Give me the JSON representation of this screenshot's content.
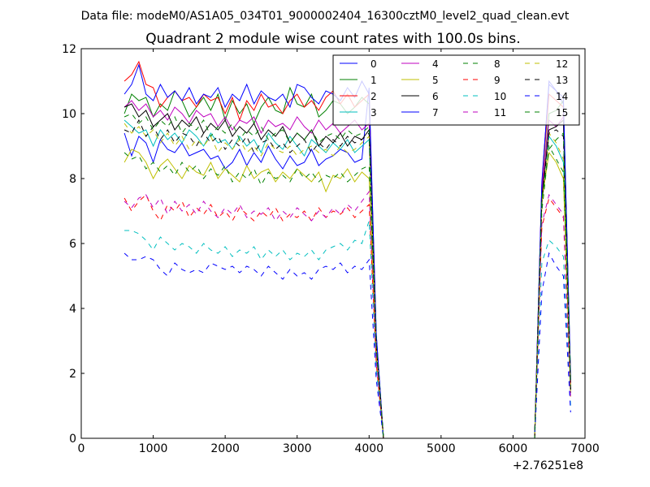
{
  "chart_data": {
    "type": "line",
    "suptitle": "Data file: modeM0/AS1A05_034T01_9000002404_16300cztM0_level2_quad_clean.evt",
    "title": "Quadrant 2 module wise count rates with 100.0s bins.",
    "xlabel": "",
    "ylabel": "",
    "x_offset_label": "+2.76251e8",
    "xlim": [
      0,
      7000
    ],
    "ylim": [
      0,
      12
    ],
    "xticks": [
      0,
      1000,
      2000,
      3000,
      4000,
      5000,
      6000,
      7000
    ],
    "yticks": [
      0,
      2,
      4,
      6,
      8,
      10,
      12
    ],
    "xtick_labels": [
      "0",
      "1000",
      "2000",
      "3000",
      "4000",
      "5000",
      "6000",
      "7000"
    ],
    "ytick_labels": [
      "0",
      "2",
      "4",
      "6",
      "8",
      "10",
      "12"
    ],
    "legend_position": "top-right",
    "legend_columns": 4,
    "x": [
      600,
      700,
      800,
      900,
      1000,
      1100,
      1200,
      1300,
      1400,
      1500,
      1600,
      1700,
      1800,
      1900,
      2000,
      2100,
      2200,
      2300,
      2400,
      2500,
      2600,
      2700,
      2800,
      2900,
      3000,
      3100,
      3200,
      3300,
      3400,
      3500,
      3600,
      3700,
      3800,
      3900,
      4000,
      4100,
      4200,
      4300,
      4400,
      4500,
      4600,
      4700,
      4800,
      4900,
      5000,
      5100,
      5200,
      5300,
      5400,
      5500,
      5600,
      5700,
      5800,
      5900,
      6000,
      6100,
      6200,
      6300,
      6400,
      6500,
      6600,
      6700,
      6800
    ],
    "series": [
      {
        "name": "0",
        "color": "#0000ff",
        "dash": "solid",
        "values": [
          9.4,
          8.7,
          9.3,
          9.1,
          8.5,
          9.2,
          8.9,
          8.8,
          9.1,
          8.7,
          8.8,
          8.9,
          8.6,
          8.7,
          8.3,
          8.5,
          8.9,
          8.4,
          8.8,
          8.5,
          9.0,
          8.6,
          8.3,
          8.7,
          8.4,
          8.5,
          8.9,
          8.4,
          8.6,
          8.7,
          8.9,
          8.8,
          8.5,
          8.6,
          10.8,
          3.2,
          0,
          0,
          0,
          0,
          0,
          0,
          0,
          0,
          0,
          0,
          0,
          0,
          0,
          0,
          0,
          0,
          0,
          0,
          0,
          0,
          0,
          0,
          7.8,
          11.0,
          10.7,
          10.3,
          1.8
        ]
      },
      {
        "name": "1",
        "color": "#008000",
        "dash": "solid",
        "values": [
          10.0,
          10.6,
          10.4,
          10.5,
          9.9,
          10.3,
          10.1,
          10.7,
          10.4,
          9.9,
          10.2,
          10.5,
          10.1,
          10.6,
          9.8,
          10.4,
          10.0,
          10.3,
          9.7,
          10.2,
          10.5,
          10.1,
          10.0,
          10.8,
          10.3,
          10.2,
          10.6,
          9.9,
          10.1,
          10.4,
          10.3,
          10.0,
          10.2,
          10.5,
          10.3,
          3.1,
          0,
          0,
          0,
          0,
          0,
          0,
          0,
          0,
          0,
          0,
          0,
          0,
          0,
          0,
          0,
          0,
          0,
          0,
          0,
          0,
          0,
          0,
          7.5,
          10.0,
          10.1,
          10.4,
          1.9
        ]
      },
      {
        "name": "2",
        "color": "#ff0000",
        "dash": "solid",
        "values": [
          11.0,
          11.2,
          11.6,
          10.9,
          10.8,
          10.2,
          10.5,
          10.7,
          10.4,
          10.5,
          10.2,
          10.6,
          10.4,
          10.5,
          10.0,
          10.5,
          9.8,
          10.4,
          10.1,
          10.6,
          10.2,
          10.3,
          10.0,
          10.4,
          10.6,
          10.2,
          10.4,
          10.1,
          10.5,
          10.7,
          10.3,
          10.6,
          10.2,
          10.4,
          10.6,
          3.0,
          0,
          0,
          0,
          0,
          0,
          0,
          0,
          0,
          0,
          0,
          0,
          0,
          0,
          0,
          0,
          0,
          0,
          0,
          0,
          0,
          0,
          0,
          7.8,
          10.6,
          10.4,
          10.2,
          1.7
        ]
      },
      {
        "name": "3",
        "color": "#00bfbf",
        "dash": "solid",
        "values": [
          9.8,
          9.6,
          9.4,
          9.5,
          9.0,
          9.5,
          9.2,
          9.4,
          9.1,
          9.5,
          9.3,
          9.0,
          9.4,
          9.1,
          9.2,
          8.9,
          9.3,
          9.0,
          9.2,
          8.8,
          9.4,
          9.1,
          8.9,
          9.3,
          9.0,
          8.7,
          9.2,
          9.0,
          8.8,
          9.1,
          8.9,
          9.2,
          8.8,
          9.0,
          9.2,
          2.9,
          0,
          0,
          0,
          0,
          0,
          0,
          0,
          0,
          0,
          0,
          0,
          0,
          0,
          0,
          0,
          0,
          0,
          0,
          0,
          0,
          0,
          0,
          7.5,
          9.3,
          9.0,
          8.5,
          1.5
        ]
      },
      {
        "name": "4",
        "color": "#bf00bf",
        "dash": "solid",
        "values": [
          10.2,
          10.4,
          10.1,
          10.3,
          9.9,
          10.1,
          9.8,
          10.2,
          10.0,
          9.7,
          10.1,
          9.9,
          10.0,
          9.6,
          9.9,
          9.5,
          9.8,
          9.7,
          9.9,
          9.4,
          9.8,
          9.6,
          9.7,
          9.5,
          9.9,
          9.6,
          9.4,
          9.8,
          9.5,
          9.7,
          9.4,
          9.6,
          9.8,
          9.5,
          9.7,
          3.0,
          0,
          0,
          0,
          0,
          0,
          0,
          0,
          0,
          0,
          0,
          0,
          0,
          0,
          0,
          0,
          0,
          0,
          0,
          0,
          0,
          0,
          0,
          7.6,
          9.8,
          9.6,
          9.9,
          1.6
        ]
      },
      {
        "name": "5",
        "color": "#bfbf00",
        "dash": "solid",
        "values": [
          8.5,
          8.9,
          8.8,
          8.5,
          8.0,
          8.4,
          8.6,
          8.3,
          8.0,
          8.4,
          8.2,
          8.1,
          8.5,
          8.0,
          8.3,
          8.1,
          7.9,
          8.4,
          8.0,
          8.2,
          8.3,
          7.9,
          8.2,
          8.0,
          8.3,
          8.1,
          7.9,
          8.2,
          7.6,
          8.1,
          8.0,
          8.3,
          7.9,
          8.2,
          8.0,
          2.7,
          0,
          0,
          0,
          0,
          0,
          0,
          0,
          0,
          0,
          0,
          0,
          0,
          0,
          0,
          0,
          0,
          0,
          0,
          0,
          0,
          0,
          0,
          7.3,
          8.8,
          8.5,
          8.0,
          1.4
        ]
      },
      {
        "name": "6",
        "color": "#000000",
        "dash": "solid",
        "values": [
          10.2,
          10.3,
          9.9,
          10.1,
          9.6,
          9.8,
          10.0,
          9.5,
          9.8,
          9.6,
          9.9,
          9.4,
          9.7,
          9.5,
          9.8,
          9.3,
          9.6,
          9.4,
          9.7,
          9.2,
          9.5,
          9.3,
          9.6,
          9.1,
          9.4,
          9.2,
          9.5,
          9.0,
          9.3,
          9.1,
          9.4,
          9.0,
          9.3,
          9.2,
          9.5,
          2.8,
          0,
          0,
          0,
          0,
          0,
          0,
          0,
          0,
          0,
          0,
          0,
          0,
          0,
          0,
          0,
          0,
          0,
          0,
          0,
          0,
          0,
          0,
          7.4,
          9.5,
          9.6,
          9.8,
          1.5
        ]
      },
      {
        "name": "7",
        "color": "#0000ff",
        "dash": "solid",
        "values": [
          10.6,
          10.9,
          11.5,
          10.6,
          10.4,
          10.9,
          10.5,
          10.7,
          10.4,
          10.8,
          10.3,
          10.6,
          10.5,
          10.8,
          10.2,
          10.6,
          10.4,
          10.9,
          10.3,
          10.7,
          10.5,
          10.4,
          10.6,
          10.2,
          10.9,
          10.8,
          10.5,
          10.3,
          10.7,
          10.6,
          10.4,
          10.8,
          10.5,
          11.0,
          10.6,
          3.2,
          0,
          0,
          0,
          0,
          0,
          0,
          0,
          0,
          0,
          0,
          0,
          0,
          0,
          0,
          0,
          0,
          0,
          0,
          0,
          0,
          0,
          0,
          7.9,
          10.9,
          10.7,
          10.5,
          1.8
        ]
      },
      {
        "name": "8",
        "color": "#008000",
        "dash": "dashed",
        "values": [
          8.8,
          8.6,
          8.7,
          8.3,
          8.5,
          8.2,
          8.4,
          8.1,
          8.5,
          8.2,
          8.4,
          8.0,
          8.3,
          8.1,
          8.4,
          7.9,
          8.2,
          8.0,
          8.3,
          7.8,
          8.2,
          8.0,
          8.1,
          7.9,
          8.3,
          8.0,
          8.2,
          7.9,
          8.1,
          8.0,
          8.2,
          7.9,
          8.1,
          8.3,
          8.4,
          2.6,
          0,
          0,
          0,
          0,
          0,
          0,
          0,
          0,
          0,
          0,
          0,
          0,
          0,
          0,
          0,
          0,
          0,
          0,
          0,
          0,
          0,
          0,
          7.0,
          9.0,
          8.6,
          8.2,
          1.4
        ]
      },
      {
        "name": "9",
        "color": "#ff0000",
        "dash": "dashed",
        "values": [
          7.4,
          7.0,
          7.3,
          7.5,
          7.0,
          6.7,
          7.2,
          7.0,
          7.3,
          6.8,
          7.1,
          6.9,
          7.2,
          6.8,
          7.0,
          6.7,
          7.1,
          6.9,
          6.7,
          7.0,
          6.8,
          7.1,
          6.7,
          6.9,
          6.8,
          7.0,
          6.7,
          7.1,
          6.8,
          7.0,
          6.9,
          7.1,
          6.8,
          7.0,
          7.2,
          2.3,
          0,
          0,
          0,
          0,
          0,
          0,
          0,
          0,
          0,
          0,
          0,
          0,
          0,
          0,
          0,
          0,
          0,
          0,
          0,
          0,
          0,
          0,
          6.5,
          7.4,
          7.1,
          6.8,
          1.2
        ]
      },
      {
        "name": "10",
        "color": "#00bfbf",
        "dash": "dashed",
        "values": [
          6.4,
          6.4,
          6.3,
          6.1,
          5.8,
          6.2,
          6.0,
          5.8,
          6.0,
          5.9,
          5.7,
          6.0,
          5.8,
          5.7,
          5.9,
          5.6,
          5.8,
          5.7,
          5.9,
          5.5,
          5.8,
          5.6,
          5.8,
          5.5,
          5.7,
          5.6,
          5.8,
          5.5,
          5.8,
          5.9,
          6.0,
          5.8,
          6.1,
          6.0,
          6.7,
          2.1,
          0,
          0,
          0,
          0,
          0,
          0,
          0,
          0,
          0,
          0,
          0,
          0,
          0,
          0,
          0,
          0,
          0,
          0,
          0,
          0,
          0,
          0,
          5.4,
          6.1,
          5.9,
          5.6,
          1.0
        ]
      },
      {
        "name": "11",
        "color": "#bf00bf",
        "dash": "dashed",
        "values": [
          7.3,
          7.1,
          7.4,
          7.5,
          7.1,
          7.4,
          6.9,
          7.3,
          7.0,
          7.2,
          6.9,
          7.3,
          7.0,
          6.8,
          7.1,
          6.9,
          7.2,
          6.8,
          7.0,
          6.9,
          7.1,
          6.7,
          7.0,
          6.8,
          7.1,
          6.9,
          6.7,
          7.0,
          6.8,
          7.1,
          6.9,
          7.2,
          7.0,
          7.3,
          7.6,
          2.4,
          0,
          0,
          0,
          0,
          0,
          0,
          0,
          0,
          0,
          0,
          0,
          0,
          0,
          0,
          0,
          0,
          0,
          0,
          0,
          0,
          0,
          0,
          6.6,
          7.5,
          7.2,
          6.9,
          1.2
        ]
      },
      {
        "name": "12",
        "color": "#bfbf00",
        "dash": "dashed",
        "values": [
          9.7,
          9.4,
          9.6,
          9.3,
          9.5,
          9.1,
          9.4,
          9.0,
          9.3,
          8.9,
          9.2,
          9.0,
          9.3,
          8.8,
          9.1,
          8.9,
          9.2,
          8.8,
          9.0,
          8.7,
          9.1,
          8.9,
          8.8,
          9.0,
          8.7,
          8.9,
          9.0,
          8.8,
          8.9,
          8.7,
          9.0,
          8.8,
          8.9,
          9.1,
          9.3,
          2.8,
          0,
          0,
          0,
          0,
          0,
          0,
          0,
          0,
          0,
          0,
          0,
          0,
          0,
          0,
          0,
          0,
          0,
          0,
          0,
          0,
          0,
          0,
          7.2,
          9.4,
          9.1,
          8.6,
          1.5
        ]
      },
      {
        "name": "13",
        "color": "#000000",
        "dash": "dashed",
        "values": [
          9.5,
          9.4,
          9.8,
          9.3,
          9.6,
          9.2,
          9.5,
          9.1,
          9.4,
          9.3,
          9.0,
          9.4,
          9.1,
          9.3,
          8.9,
          9.2,
          9.0,
          9.3,
          8.8,
          9.1,
          9.2,
          8.9,
          9.1,
          8.8,
          9.0,
          9.2,
          8.8,
          9.1,
          8.9,
          9.2,
          9.0,
          9.3,
          9.1,
          9.2,
          9.4,
          2.9,
          0,
          0,
          0,
          0,
          0,
          0,
          0,
          0,
          0,
          0,
          0,
          0,
          0,
          0,
          0,
          0,
          0,
          0,
          0,
          0,
          0,
          0,
          7.3,
          9.4,
          9.5,
          9.3,
          1.5
        ]
      },
      {
        "name": "14",
        "color": "#0000ff",
        "dash": "dashed",
        "values": [
          5.7,
          5.5,
          5.5,
          5.6,
          5.5,
          5.2,
          5.0,
          5.4,
          5.2,
          5.1,
          5.2,
          5.1,
          5.4,
          5.3,
          5.2,
          5.3,
          5.1,
          5.3,
          5.2,
          5.0,
          5.3,
          5.1,
          4.9,
          5.2,
          5.0,
          5.1,
          4.9,
          5.2,
          5.3,
          5.2,
          5.4,
          5.1,
          5.3,
          5.2,
          5.5,
          1.8,
          0,
          0,
          0,
          0,
          0,
          0,
          0,
          0,
          0,
          0,
          0,
          0,
          0,
          0,
          0,
          0,
          0,
          0,
          0,
          0,
          0,
          0,
          4.5,
          5.7,
          5.3,
          5.0,
          0.8
        ]
      },
      {
        "name": "15",
        "color": "#008000",
        "dash": "dashed",
        "values": [
          9.9,
          10.0,
          9.7,
          9.9,
          9.5,
          9.8,
          9.6,
          9.9,
          9.4,
          9.7,
          9.5,
          9.8,
          9.3,
          9.6,
          9.4,
          9.7,
          9.2,
          9.5,
          9.3,
          9.6,
          9.2,
          9.4,
          9.5,
          9.1,
          9.4,
          9.2,
          9.5,
          9.1,
          9.3,
          9.4,
          9.2,
          9.5,
          9.3,
          9.4,
          9.6,
          2.9,
          0,
          0,
          0,
          0,
          0,
          0,
          0,
          0,
          0,
          0,
          0,
          0,
          0,
          0,
          0,
          0,
          0,
          0,
          0,
          0,
          0,
          0,
          7.4,
          8.9,
          9.2,
          9.4,
          1.6
        ]
      }
    ]
  }
}
